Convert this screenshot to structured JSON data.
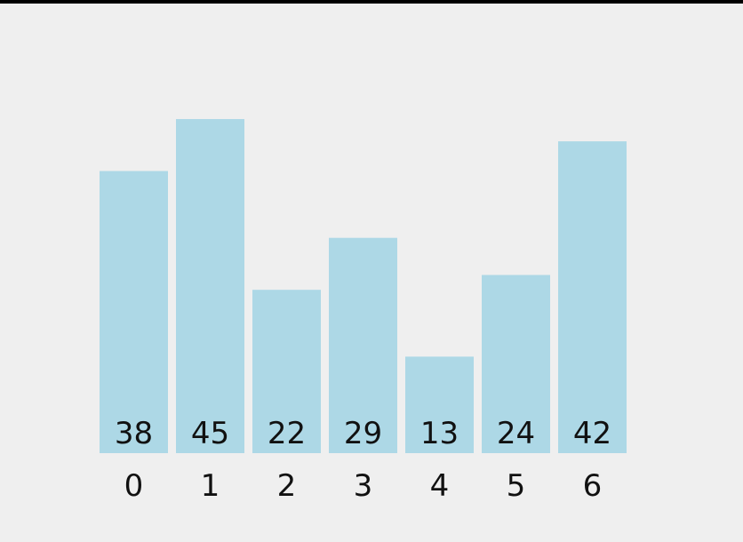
{
  "chart_data": {
    "type": "bar",
    "categories": [
      "0",
      "1",
      "2",
      "3",
      "4",
      "5",
      "6"
    ],
    "values": [
      38,
      45,
      22,
      29,
      13,
      24,
      42
    ],
    "ylim": [
      0,
      45
    ],
    "grid": false,
    "title": "",
    "xlabel": "",
    "ylabel": ""
  },
  "colors": {
    "bar": "#add8e6",
    "background": "#efefef",
    "text": "#111111"
  }
}
